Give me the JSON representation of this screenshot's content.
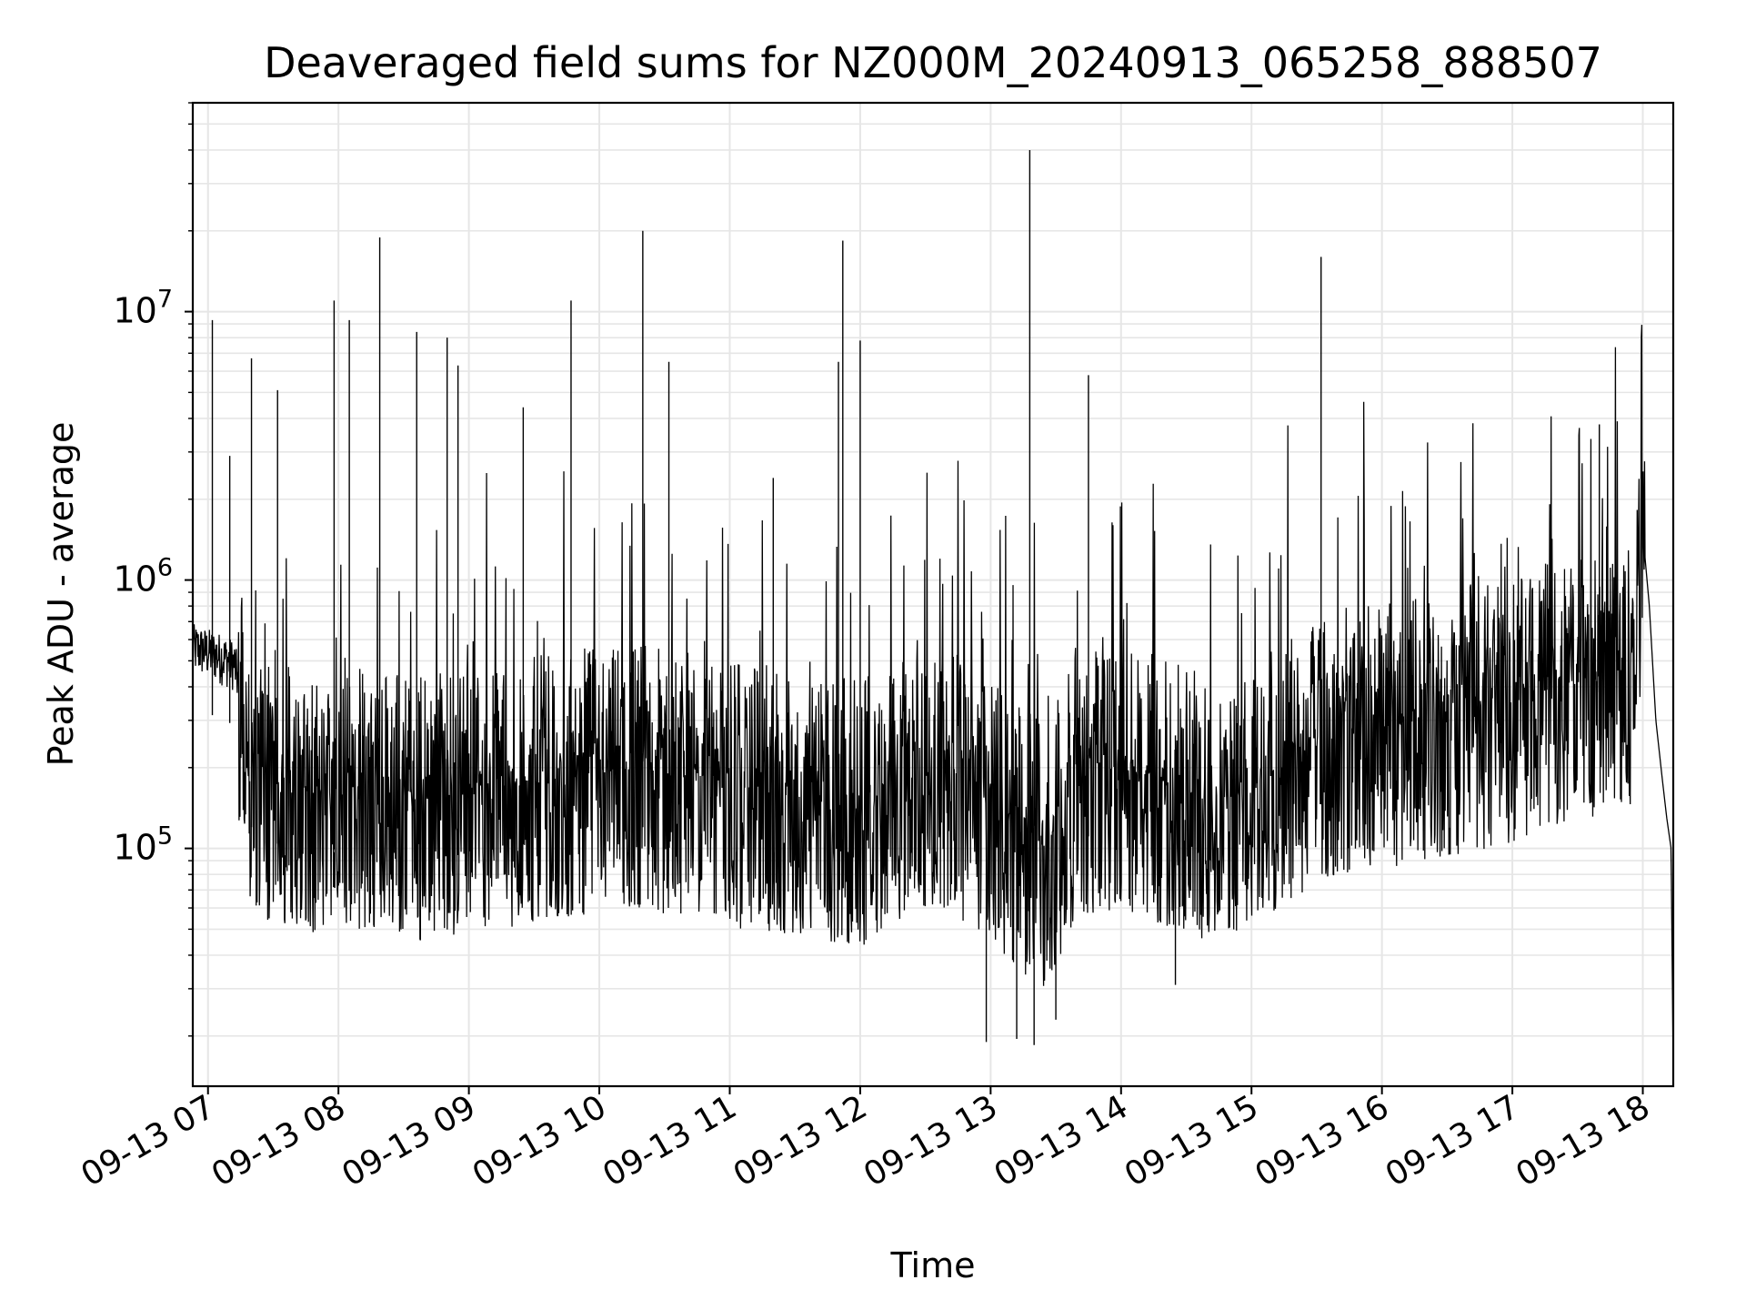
{
  "chart_data": {
    "type": "line",
    "title": "Deaveraged field sums for NZ000M_20240913_065258_888507",
    "xlabel": "Time",
    "ylabel": "Peak ADU - average",
    "y_scale": "log",
    "ylim": [
      13000,
      60000000
    ],
    "xlim": [
      "2024-09-13 06:53",
      "2024-09-13 18:14"
    ],
    "grid": true,
    "line_color": "#000000",
    "grid_color": "#e6e6e6",
    "x_tick_labels": [
      "09-13 07",
      "09-13 08",
      "09-13 09",
      "09-13 10",
      "09-13 11",
      "09-13 12",
      "09-13 13",
      "09-13 14",
      "09-13 15",
      "09-13 16",
      "09-13 17",
      "09-13 18"
    ],
    "x_tick_values": [
      "2024-09-13 07:00",
      "2024-09-13 08:00",
      "2024-09-13 09:00",
      "2024-09-13 10:00",
      "2024-09-13 11:00",
      "2024-09-13 12:00",
      "2024-09-13 13:00",
      "2024-09-13 14:00",
      "2024-09-13 15:00",
      "2024-09-13 16:00",
      "2024-09-13 17:00",
      "2024-09-13 18:00"
    ],
    "y_tick_labels": [
      {
        "base": "10",
        "exp": "5"
      },
      {
        "base": "10",
        "exp": "6"
      },
      {
        "base": "10",
        "exp": "7"
      }
    ],
    "y_tick_values": [
      100000,
      1000000,
      10000000
    ],
    "series": [
      {
        "x": [
          "2024-09-13 06:53",
          "2024-09-13 07:03",
          "2024-09-13 07:12",
          "2024-09-13 07:16",
          "2024-09-13 07:20",
          "2024-09-13 07:27",
          "2024-09-13 07:35",
          "2024-09-13 07:50",
          "2024-09-13 08:05",
          "2024-09-13 08:20",
          "2024-09-13 08:40",
          "2024-09-13 09:00",
          "2024-09-13 09:20",
          "2024-09-13 09:40",
          "2024-09-13 10:00",
          "2024-09-13 10:20",
          "2024-09-13 10:40",
          "2024-09-13 11:00",
          "2024-09-13 11:20",
          "2024-09-13 11:40",
          "2024-09-13 12:00",
          "2024-09-13 12:20",
          "2024-09-13 12:40",
          "2024-09-13 12:55",
          "2024-09-13 13:10",
          "2024-09-13 13:25",
          "2024-09-13 13:40",
          "2024-09-13 14:00",
          "2024-09-13 14:20",
          "2024-09-13 14:40",
          "2024-09-13 15:00",
          "2024-09-13 15:20",
          "2024-09-13 15:40",
          "2024-09-13 16:00",
          "2024-09-13 16:20",
          "2024-09-13 16:40",
          "2024-09-13 17:00",
          "2024-09-13 17:20",
          "2024-09-13 17:40",
          "2024-09-13 17:55",
          "2024-09-13 18:00",
          "2024-09-13 18:03",
          "2024-09-13 18:06",
          "2024-09-13 18:09",
          "2024-09-13 18:11",
          "2024-09-13 18:13",
          "2024-09-13 18:14"
        ],
        "y": [
          550000,
          520000,
          480000,
          350000,
          200000,
          180000,
          170000,
          160000,
          170000,
          160000,
          150000,
          160000,
          170000,
          180000,
          190000,
          200000,
          180000,
          170000,
          160000,
          150000,
          140000,
          180000,
          200000,
          160000,
          120000,
          100000,
          180000,
          200000,
          170000,
          150000,
          160000,
          220000,
          260000,
          280000,
          300000,
          320000,
          350000,
          400000,
          420000,
          450000,
          1500000,
          800000,
          300000,
          180000,
          130000,
          100000,
          15000
        ],
        "noise_lo": 0.3,
        "noise_hi": 3.0
      }
    ],
    "spikes": [
      {
        "x": "2024-09-13 07:02",
        "y": 9300000
      },
      {
        "x": "2024-09-13 07:10",
        "y": 2900000
      },
      {
        "x": "2024-09-13 07:20",
        "y": 6700000
      },
      {
        "x": "2024-09-13 07:32",
        "y": 5100000
      },
      {
        "x": "2024-09-13 07:58",
        "y": 11000000
      },
      {
        "x": "2024-09-13 08:05",
        "y": 9300000
      },
      {
        "x": "2024-09-13 08:19",
        "y": 18900000
      },
      {
        "x": "2024-09-13 08:36",
        "y": 8400000
      },
      {
        "x": "2024-09-13 08:50",
        "y": 8000000
      },
      {
        "x": "2024-09-13 08:55",
        "y": 6300000
      },
      {
        "x": "2024-09-13 09:25",
        "y": 4400000
      },
      {
        "x": "2024-09-13 09:47",
        "y": 11000000
      },
      {
        "x": "2024-09-13 10:20",
        "y": 20000000
      },
      {
        "x": "2024-09-13 10:32",
        "y": 6500000
      },
      {
        "x": "2024-09-13 11:20",
        "y": 2400000
      },
      {
        "x": "2024-09-13 11:50",
        "y": 6500000
      },
      {
        "x": "2024-09-13 11:52",
        "y": 18400000
      },
      {
        "x": "2024-09-13 12:00",
        "y": 7800000
      },
      {
        "x": "2024-09-13 13:18",
        "y": 40000000
      },
      {
        "x": "2024-09-13 13:45",
        "y": 5800000
      },
      {
        "x": "2024-09-13 15:32",
        "y": 16000000
      },
      {
        "x": "2024-09-13 17:40",
        "y": 3800000
      }
    ],
    "dips": [
      {
        "x": "2024-09-13 12:58",
        "y": 19000
      },
      {
        "x": "2024-09-13 13:12",
        "y": 19500
      },
      {
        "x": "2024-09-13 13:20",
        "y": 18500
      },
      {
        "x": "2024-09-13 13:30",
        "y": 23000
      },
      {
        "x": "2024-09-13 14:25",
        "y": 31000
      }
    ]
  }
}
